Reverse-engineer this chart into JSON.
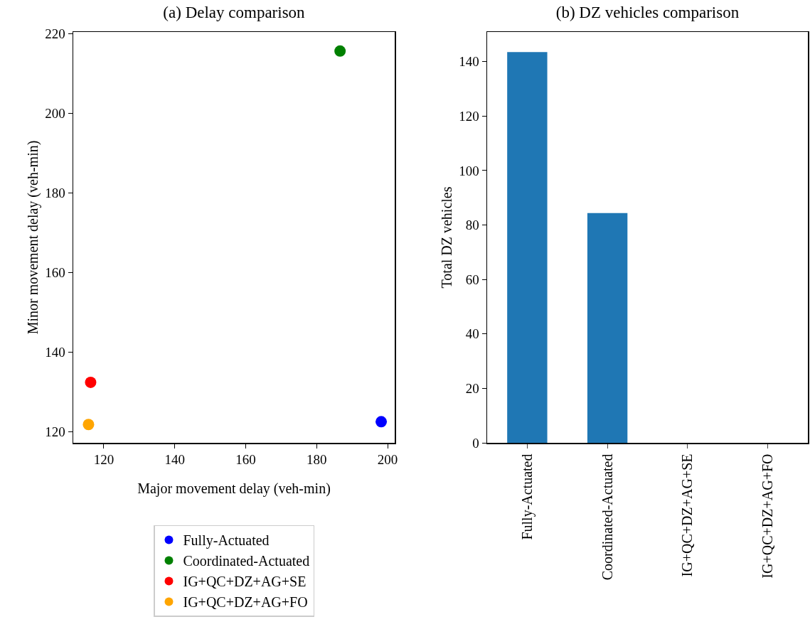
{
  "chart_data": [
    {
      "type": "scatter",
      "title": "(a) Delay comparison",
      "xlabel": "Major movement delay (veh-min)",
      "ylabel": "Minor movement delay (veh-min)",
      "series": [
        {
          "name": "Fully-Actuated",
          "color": "#0000ff",
          "x": [
            198.2
          ],
          "values": [
            122.5
          ]
        },
        {
          "name": "Coordinated-Actuated",
          "color": "#008000",
          "x": [
            186.6
          ],
          "values": [
            215.7
          ]
        },
        {
          "name": "IG+QC+DZ+AG+SE",
          "color": "#ff0000",
          "x": [
            116.3
          ],
          "values": [
            132.4
          ]
        },
        {
          "name": "IG+QC+DZ+AG+FO",
          "color": "#ffa500",
          "x": [
            115.7
          ],
          "values": [
            121.8
          ]
        }
      ],
      "xlim": [
        111.4,
        202
      ],
      "xticks": [
        120,
        140,
        160,
        180,
        200
      ],
      "ylim": [
        117.2,
        220.5
      ],
      "yticks": [
        120,
        140,
        160,
        180,
        200,
        220
      ],
      "marker": "circle",
      "grid": false,
      "legend": "bottom"
    },
    {
      "type": "bar",
      "title": "(b) DZ vehicles comparison",
      "ylabel": "Total DZ vehicles",
      "categories": [
        "Fully-Actuated",
        "Coordinated-Actuated",
        "IG+QC+DZ+AG+SE",
        "IG+QC+DZ+AG+FO"
      ],
      "values": [
        143.5,
        84.4,
        0,
        0
      ],
      "color": "#1f77b4",
      "ylim": [
        0,
        150.9
      ],
      "yticks": [
        0,
        20,
        40,
        60,
        80,
        100,
        120,
        140
      ],
      "grid": false
    }
  ]
}
